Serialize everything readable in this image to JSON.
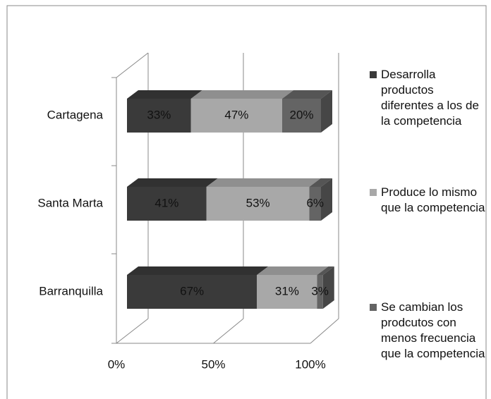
{
  "chart_data": {
    "type": "bar",
    "orientation": "horizontal",
    "stacked": true,
    "categories": [
      "Cartagena",
      "Santa Marta",
      "Barranquilla"
    ],
    "series": [
      {
        "name": "Desarrolla productos diferentes a los de la competencia",
        "color": "#3a3a3a",
        "values": [
          33,
          41,
          67
        ],
        "value_labels": [
          "33%",
          "41%",
          "67%"
        ]
      },
      {
        "name": "Produce lo mismo que la competencia",
        "color": "#a8a8a8",
        "values": [
          47,
          53,
          31
        ],
        "value_labels": [
          "47%",
          "53%",
          "31%"
        ]
      },
      {
        "name": "Se cambian los prodcutos con menos frecuencia que la competencia",
        "color": "#646464",
        "values": [
          20,
          6,
          3
        ],
        "value_labels": [
          "20%",
          "6%",
          "3%"
        ]
      }
    ],
    "xlim": [
      0,
      100
    ],
    "xticks": [
      {
        "value": 0,
        "label": "0%"
      },
      {
        "value": 50,
        "label": "50%"
      },
      {
        "value": 100,
        "label": "100%"
      }
    ],
    "legend": "right",
    "grid": true
  }
}
